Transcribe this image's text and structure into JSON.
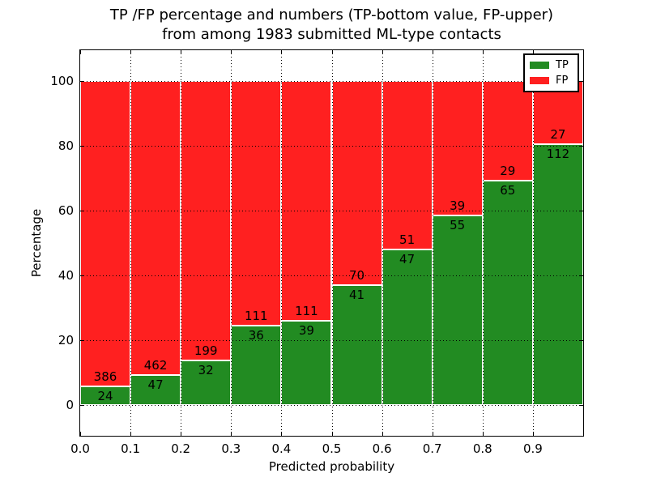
{
  "figure": {
    "title_line1": "TP /FP percentage and numbers (TP-bottom value, FP-upper)",
    "title_line2": "from among 1983 submitted ML-type contacts",
    "xlabel": "Predicted probability",
    "ylabel": "Percentage",
    "background_color": "#ffffff"
  },
  "legend": {
    "position": "upper right",
    "items": [
      {
        "label": "TP",
        "color": "#228b22"
      },
      {
        "label": "FP",
        "color": "#ff2020"
      }
    ]
  },
  "chart_data": {
    "type": "bar",
    "stacked": true,
    "normalized_to_percent": true,
    "title": "TP /FP percentage and numbers (TP-bottom value, FP-upper) from among 1983 submitted ML-type contacts",
    "xlabel": "Predicted probability",
    "ylabel": "Percentage",
    "total_contacts": 1983,
    "bin_width": 0.1,
    "bin_starts": [
      0.0,
      0.1,
      0.2,
      0.3,
      0.4,
      0.5,
      0.6,
      0.7,
      0.8,
      0.9
    ],
    "x_tick_labels": [
      "0.0",
      "0.1",
      "0.2",
      "0.3",
      "0.4",
      "0.5",
      "0.6",
      "0.7",
      "0.8",
      "0.9"
    ],
    "y_tick_values": [
      0,
      20,
      40,
      60,
      80,
      100
    ],
    "y_tick_labels": [
      "0",
      "20",
      "40",
      "60",
      "80",
      "100"
    ],
    "xlim": [
      0.0,
      1.0
    ],
    "ylim": [
      -9.5,
      109.5
    ],
    "grid": "dotted",
    "legend_position": "upper right",
    "series": [
      {
        "name": "TP",
        "color": "#228b22",
        "counts": [
          24,
          47,
          32,
          36,
          39,
          41,
          47,
          55,
          65,
          112
        ]
      },
      {
        "name": "FP",
        "color": "#ff2020",
        "counts": [
          386,
          462,
          199,
          111,
          111,
          70,
          51,
          39,
          29,
          27
        ]
      }
    ],
    "tp_percent": [
      5.85,
      9.23,
      13.85,
      24.49,
      26.0,
      36.94,
      47.96,
      58.51,
      69.15,
      80.58
    ]
  }
}
